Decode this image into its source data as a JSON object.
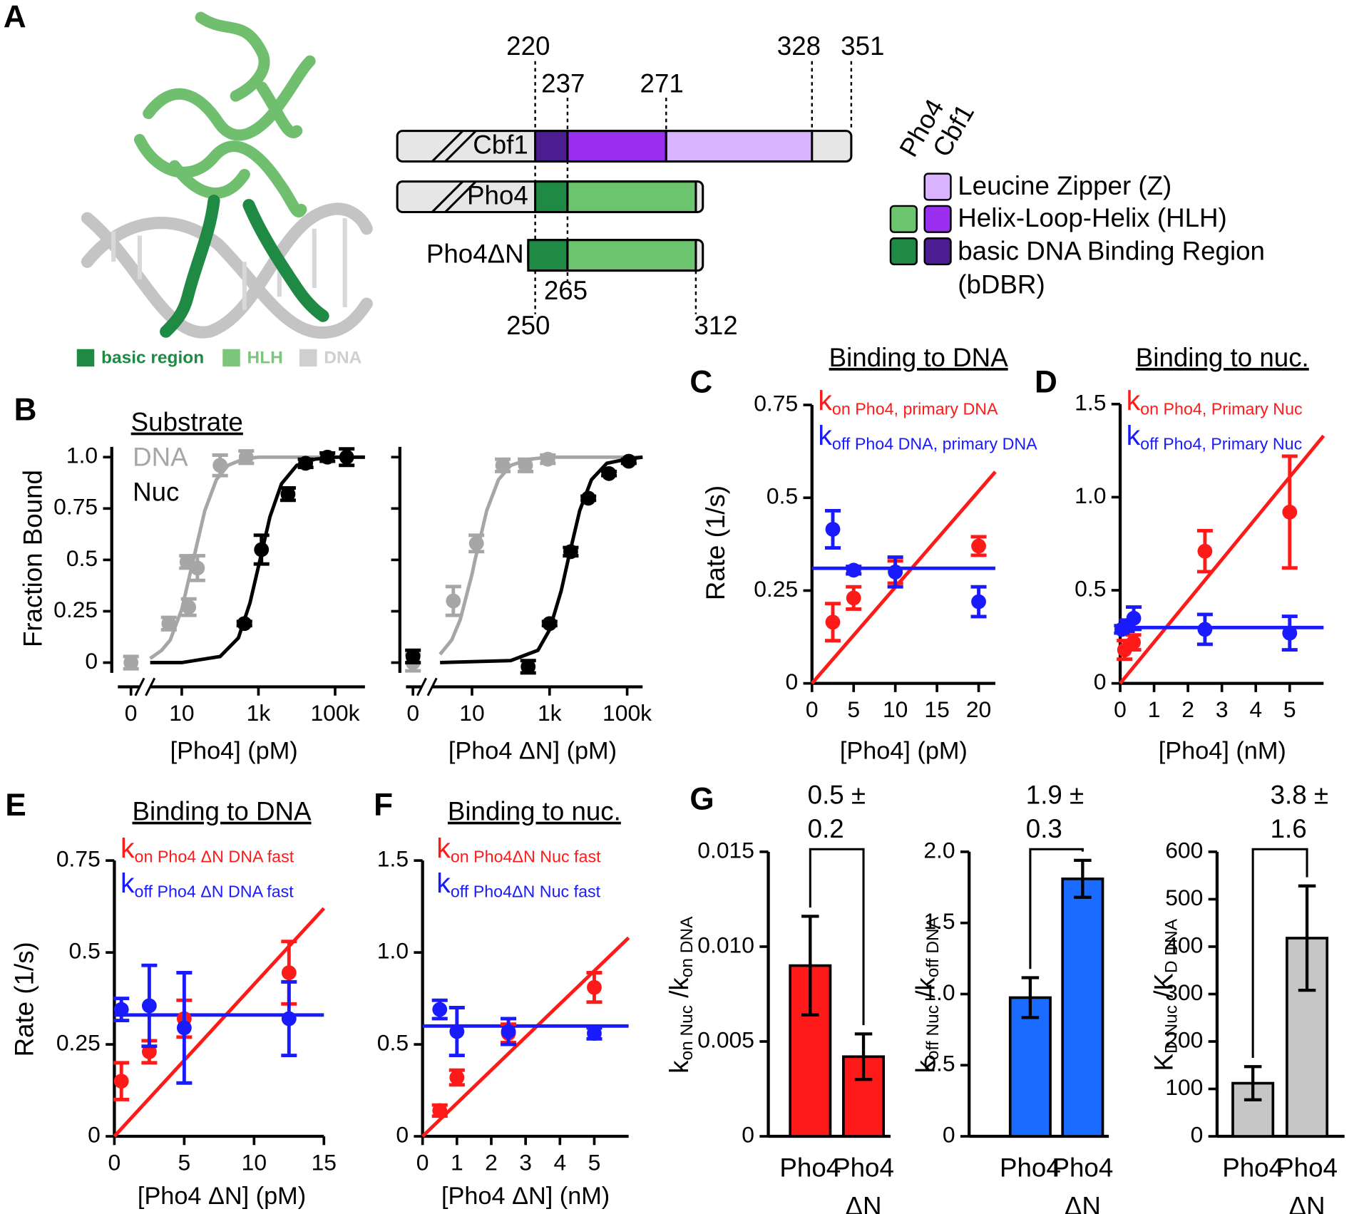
{
  "diagram": {
    "panel": "A",
    "structure_legend": [
      "basic region",
      "HLH",
      "DNA"
    ],
    "constructs": [
      "Cbf1",
      "Pho4",
      "Pho4ΔN"
    ],
    "positions_top": [
      220,
      237,
      271,
      328,
      351
    ],
    "positions_bottom": [
      250,
      265,
      312
    ],
    "key_headers": [
      "Pho4",
      "Cbf1"
    ],
    "key": [
      "Leucine Zipper (Z)",
      "Helix-Loop-Helix (HLH)",
      "basic DNA Binding Region",
      "(bDBR)"
    ]
  },
  "chart_data": [
    {
      "panel": "B",
      "type": "scatter",
      "xscale": "log",
      "xlabel": "[Pho4] (pM)",
      "ylabel": "Fraction Bound",
      "legend_title": "Substrate",
      "xlim": [
        1.5,
        600000
      ],
      "ylim": [
        -0.05,
        1.05
      ],
      "xticks": [
        0,
        10,
        {
          "value": 1000,
          "label": "1k"
        },
        {
          "value": 100000,
          "label": "100k"
        }
      ],
      "yticks": [
        0,
        0.25,
        0.5,
        0.75,
        {
          "value": 1,
          "label": "1.0"
        }
      ],
      "series": [
        {
          "mode": "line",
          "color": "#a6a6a6",
          "x": [
            1.5,
            3,
            5,
            10,
            20,
            40,
            80,
            160,
            400,
            1000,
            10000,
            600000
          ],
          "values": [
            0.02,
            0.06,
            0.11,
            0.26,
            0.5,
            0.74,
            0.89,
            0.96,
            0.99,
            1.0,
            1.0,
            1.0
          ]
        },
        {
          "mode": "line",
          "color": "#000000",
          "x": [
            1.5,
            10,
            100,
            300,
            600,
            1100,
            2000,
            4000,
            10000,
            30000,
            100000,
            600000
          ],
          "values": [
            0,
            0,
            0.03,
            0.12,
            0.29,
            0.5,
            0.71,
            0.87,
            0.96,
            0.99,
            1.0,
            1.0
          ]
        },
        {
          "name": "DNA",
          "color": "#a6a6a6",
          "x": [
            0,
            4.6,
            13.7,
            15.2,
            25.6,
            100,
            480
          ],
          "values": [
            0,
            0.19,
            0.49,
            0.27,
            0.46,
            0.96,
            1.0
          ],
          "errors": [
            0.03,
            0.03,
            0.03,
            0.04,
            0.06,
            0.05,
            0.03
          ]
        },
        {
          "name": "Nuc",
          "color": "#000000",
          "x": [
            430,
            1200,
            5900,
            17000,
            63000,
            200000
          ],
          "values": [
            0.19,
            0.55,
            0.82,
            0.97,
            1.0,
            1.0
          ],
          "errors": [
            0.01,
            0.07,
            0.03,
            0.02,
            0.02,
            0.04
          ]
        }
      ]
    },
    {
      "type": "scatter",
      "xscale": "log",
      "xlabel": "[Pho4 ΔN] (pM)",
      "show_ytick_labels": false,
      "xlim": [
        1.5,
        250000
      ],
      "ylim": [
        -0.05,
        1.05
      ],
      "xticks": [
        0,
        10,
        {
          "value": 1000,
          "label": "1k"
        },
        {
          "value": 100000,
          "label": "100k"
        }
      ],
      "yticks": [
        0,
        0.25,
        0.5,
        0.75,
        1
      ],
      "series": [
        {
          "mode": "line",
          "color": "#a6a6a6",
          "x": [
            1.5,
            3,
            5,
            10,
            12,
            24,
            48,
            100,
            300,
            1000,
            250000
          ],
          "values": [
            0.04,
            0.11,
            0.21,
            0.43,
            0.5,
            0.74,
            0.89,
            0.96,
            0.99,
            1.0,
            1.0
          ]
        },
        {
          "mode": "line",
          "color": "#000000",
          "x": [
            1.5,
            100,
            500,
            1000,
            2000,
            3000,
            6000,
            12000,
            30000,
            100000,
            250000
          ],
          "values": [
            0,
            0.01,
            0.06,
            0.16,
            0.35,
            0.5,
            0.74,
            0.89,
            0.97,
            0.99,
            1.0
          ]
        },
        {
          "color": "#a6a6a6",
          "x": [
            0,
            3.3,
            13,
            62,
            240,
            900
          ],
          "values": [
            0.0,
            0.3,
            0.58,
            0.96,
            0.96,
            0.99
          ],
          "errors": [
            0.04,
            0.07,
            0.04,
            0.03,
            0.03,
            0.02
          ]
        },
        {
          "color": "#000000",
          "x": [
            0,
            280,
            1000,
            3500,
            10000,
            34000,
            110000
          ],
          "values": [
            0.03,
            -0.02,
            0.19,
            0.54,
            0.8,
            0.92,
            0.98
          ],
          "errors": [
            0.03,
            0.03,
            0.01,
            0.02,
            0.01,
            0.01,
            0.01
          ]
        }
      ]
    },
    {
      "panel": "C",
      "type": "scatter",
      "title": "Binding to DNA",
      "xlabel": "[Pho4] (pM)",
      "ylabel": "Rate (1/s)",
      "xlim": [
        0,
        22
      ],
      "ylim": [
        0,
        0.75
      ],
      "xticks": [
        0,
        5,
        10,
        15,
        20
      ],
      "yticks": [
        0,
        0.25,
        0.5,
        0.75
      ],
      "series": [
        {
          "name": "k",
          "subscript": "on Pho4, primary DNA",
          "color": "#ff1a1a",
          "x": [
            2.5,
            5,
            10,
            20
          ],
          "values": [
            0.165,
            0.23,
            0.3,
            0.37
          ],
          "errors": [
            0.05,
            0.03,
            0.03,
            0.025
          ]
        },
        {
          "name": "k",
          "subscript": "off  Pho4 DNA, primary DNA",
          "color": "#1a1aff",
          "x": [
            2.5,
            5,
            10,
            20
          ],
          "values": [
            0.415,
            0.305,
            0.3,
            0.22
          ],
          "errors": [
            0.05,
            0.01,
            0.04,
            0.04
          ]
        },
        {
          "mode": "line",
          "color": "#ff1a1a",
          "x": [
            0,
            22
          ],
          "values": [
            0,
            0.57
          ]
        },
        {
          "mode": "line",
          "color": "#1a1aff",
          "x": [
            0,
            22
          ],
          "values": [
            0.31,
            0.31
          ]
        }
      ]
    },
    {
      "panel": "D",
      "type": "scatter",
      "title": "Binding to nuc.",
      "xlabel": "[Pho4] (nM)",
      "xlim": [
        0,
        6
      ],
      "ylim": [
        0,
        1.5
      ],
      "xticks": [
        0,
        1,
        2,
        3,
        4,
        5
      ],
      "yticks": [
        0,
        0.5,
        {
          "value": 1,
          "label": "1.0"
        },
        1.5
      ],
      "series": [
        {
          "name": "k",
          "subscript": "on Pho4, Primary Nuc",
          "color": "#ff1a1a",
          "x": [
            0.13,
            0.39,
            2.5,
            5
          ],
          "values": [
            0.18,
            0.22,
            0.71,
            0.92
          ],
          "errors": [
            0.05,
            0.04,
            0.11,
            0.3
          ]
        },
        {
          "name": "k",
          "subscript": "off Pho4, Primary Nuc",
          "color": "#1a1aff",
          "x": [
            0.05,
            0.2,
            0.4,
            2.5,
            5
          ],
          "values": [
            0.29,
            0.31,
            0.35,
            0.29,
            0.27
          ],
          "errors": [
            0.02,
            0.03,
            0.06,
            0.08,
            0.09
          ]
        },
        {
          "mode": "line",
          "color": "#ff1a1a",
          "x": [
            0,
            6
          ],
          "values": [
            0,
            1.33
          ]
        },
        {
          "mode": "line",
          "color": "#1a1aff",
          "x": [
            0,
            6
          ],
          "values": [
            0.3,
            0.3
          ]
        }
      ]
    },
    {
      "panel": "E",
      "type": "scatter",
      "title": "Binding to DNA",
      "xlabel": "[Pho4 ΔN] (pM)",
      "ylabel": "Rate (1/s)",
      "xlim": [
        0,
        15
      ],
      "ylim": [
        0,
        0.75
      ],
      "xticks": [
        0,
        5,
        10,
        15
      ],
      "yticks": [
        0,
        0.25,
        0.5,
        0.75
      ],
      "series": [
        {
          "name": "k",
          "subscript": "on Pho4 ΔN DNA fast",
          "color": "#ff1a1a",
          "x": [
            0.5,
            2.5,
            5,
            12.5
          ],
          "values": [
            0.15,
            0.23,
            0.32,
            0.445
          ],
          "errors": [
            0.05,
            0.03,
            0.05,
            0.085
          ]
        },
        {
          "name": "k",
          "subscript": "off Pho4 ΔN DNA fast",
          "color": "#1a1aff",
          "x": [
            0.5,
            2.5,
            5,
            12.5
          ],
          "values": [
            0.345,
            0.355,
            0.295,
            0.32
          ],
          "errors": [
            0.03,
            0.11,
            0.15,
            0.1
          ]
        },
        {
          "mode": "line",
          "color": "#ff1a1a",
          "x": [
            0,
            15
          ],
          "values": [
            0,
            0.62
          ]
        },
        {
          "mode": "line",
          "color": "#1a1aff",
          "x": [
            0,
            15
          ],
          "values": [
            0.33,
            0.33
          ]
        }
      ]
    },
    {
      "panel": "F",
      "type": "scatter",
      "title": "Binding to nuc.",
      "xlabel": "[Pho4 ΔN] (nM)",
      "xlim": [
        0,
        6
      ],
      "ylim": [
        0,
        1.5
      ],
      "xticks": [
        0,
        1,
        2,
        3,
        4,
        5
      ],
      "yticks": [
        0,
        0.5,
        {
          "value": 1,
          "label": "1.0"
        },
        1.5
      ],
      "series": [
        {
          "name": "k",
          "subscript": "on Pho4ΔN Nuc fast",
          "color": "#ff1a1a",
          "x": [
            0.5,
            1,
            2.5,
            5
          ],
          "values": [
            0.14,
            0.32,
            0.56,
            0.81
          ],
          "errors": [
            0.03,
            0.04,
            0.05,
            0.08
          ]
        },
        {
          "name": "k",
          "subscript": "off Pho4ΔN Nuc fast",
          "color": "#1a1aff",
          "x": [
            0.5,
            1,
            2.5,
            5
          ],
          "values": [
            0.69,
            0.57,
            0.57,
            0.56
          ],
          "errors": [
            0.05,
            0.13,
            0.07,
            0.03
          ]
        },
        {
          "mode": "line",
          "color": "#ff1a1a",
          "x": [
            0,
            6
          ],
          "values": [
            0,
            1.08
          ]
        },
        {
          "mode": "line",
          "color": "#1a1aff",
          "x": [
            0,
            6
          ],
          "values": [
            0.6,
            0.6
          ]
        }
      ]
    },
    {
      "panel": "G",
      "type": "bar",
      "categories": [
        "Pho4",
        "Pho4 ΔN"
      ],
      "values": [
        0.009,
        0.0042
      ],
      "errors": [
        0.0026,
        0.0012
      ],
      "color": "#ff1a1a",
      "ylim": [
        0,
        0.015
      ],
      "yticks": [
        0,
        0.005,
        {
          "value": 0.01,
          "label": "0.010"
        },
        0.015
      ],
      "ylabel": [
        "k",
        "on Nuc",
        " /k",
        "on DNA"
      ],
      "annotation": [
        "0.5 ±",
        "0.2"
      ]
    },
    {
      "type": "bar",
      "categories": [
        "Pho4",
        "Pho4 ΔN"
      ],
      "values": [
        0.975,
        1.81
      ],
      "errors": [
        0.14,
        0.13
      ],
      "color": "#1a6bff",
      "ylim": [
        0,
        2
      ],
      "yticks": [
        0,
        0.5,
        {
          "value": 1,
          "label": "1.0"
        },
        1.5,
        {
          "value": 2,
          "label": "2.0"
        }
      ],
      "ylabel": [
        "k",
        "off Nuc",
        " /k",
        "off DNA"
      ],
      "annotation": [
        "1.9 ±",
        "0.3"
      ]
    },
    {
      "type": "bar",
      "categories": [
        "Pho4",
        "Pho4 ΔN"
      ],
      "values": [
        112,
        418
      ],
      "errors": [
        35,
        110
      ],
      "color": "#c6c6c6",
      "ylim": [
        0,
        600
      ],
      "yticks": [
        0,
        100,
        200,
        300,
        400,
        500,
        600
      ],
      "ylabel": [
        "K",
        "D Nuc",
        " /K",
        "D DNA"
      ],
      "annotation": [
        "3.8 ±",
        "1.6"
      ]
    }
  ]
}
